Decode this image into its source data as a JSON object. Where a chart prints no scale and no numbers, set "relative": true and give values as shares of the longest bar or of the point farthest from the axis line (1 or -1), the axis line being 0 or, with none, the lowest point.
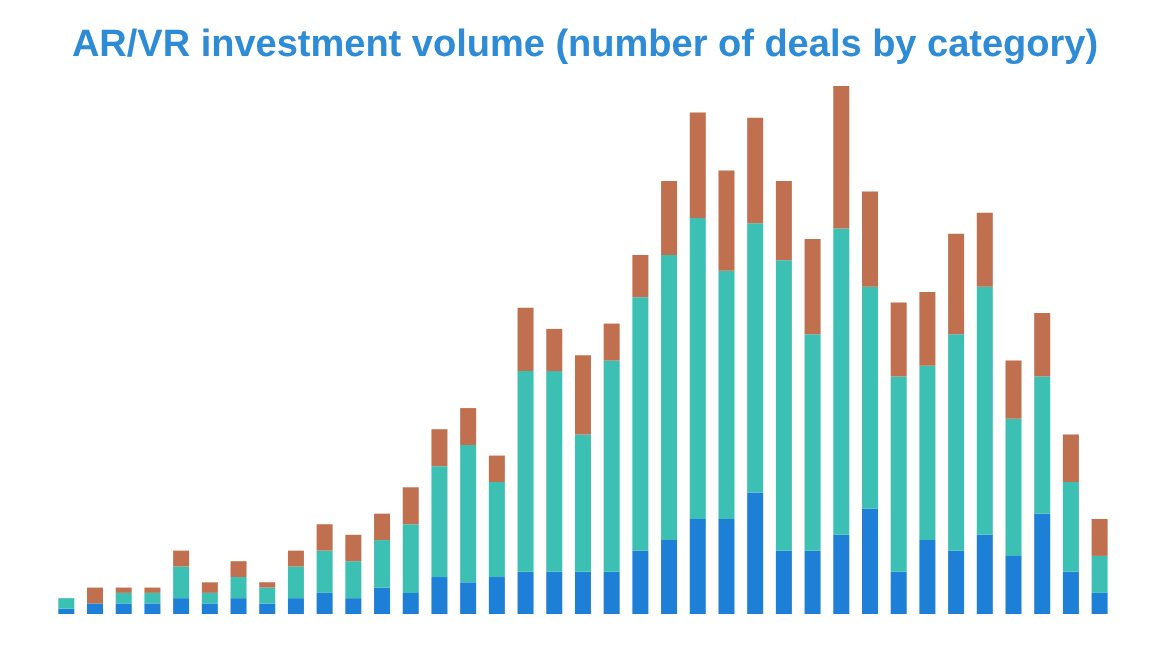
{
  "chart_data": {
    "type": "bar",
    "title": "AR/VR investment volume (number of deals by category)",
    "relative": true,
    "stacked": true,
    "legend": false,
    "grid": false,
    "categories": [
      null,
      null,
      null,
      null,
      null,
      null,
      null,
      null,
      null,
      null,
      null,
      null,
      null,
      null,
      null,
      null,
      null,
      null,
      null,
      null,
      null,
      null,
      null,
      null,
      null,
      null,
      null,
      null,
      null,
      null,
      null,
      null,
      null,
      null,
      null,
      null,
      null
    ],
    "series": [
      {
        "color": "#1e7fd6",
        "values": [
          0.01,
          0.02,
          0.02,
          0.02,
          0.03,
          0.02,
          0.03,
          0.02,
          0.03,
          0.04,
          0.03,
          0.05,
          0.04,
          0.07,
          0.06,
          0.07,
          0.08,
          0.08,
          0.08,
          0.08,
          0.12,
          0.14,
          0.18,
          0.18,
          0.23,
          0.12,
          0.12,
          0.15,
          0.2,
          0.08,
          0.14,
          0.12,
          0.15,
          0.11,
          0.19,
          0.08,
          0.04
        ]
      },
      {
        "color": "#3cc0b4",
        "values": [
          0.02,
          0.0,
          0.02,
          0.02,
          0.06,
          0.02,
          0.04,
          0.03,
          0.06,
          0.08,
          0.07,
          0.09,
          0.13,
          0.21,
          0.26,
          0.18,
          0.38,
          0.38,
          0.26,
          0.4,
          0.48,
          0.54,
          0.57,
          0.47,
          0.51,
          0.55,
          0.41,
          0.58,
          0.42,
          0.37,
          0.33,
          0.41,
          0.47,
          0.26,
          0.26,
          0.17,
          0.07
        ]
      },
      {
        "color": "#c0704f",
        "values": [
          0.0,
          0.03,
          0.01,
          0.01,
          0.03,
          0.02,
          0.03,
          0.01,
          0.03,
          0.05,
          0.05,
          0.05,
          0.07,
          0.07,
          0.07,
          0.05,
          0.12,
          0.08,
          0.15,
          0.07,
          0.08,
          0.14,
          0.2,
          0.19,
          0.2,
          0.15,
          0.18,
          0.27,
          0.18,
          0.14,
          0.14,
          0.19,
          0.14,
          0.11,
          0.12,
          0.09,
          0.07
        ]
      }
    ]
  }
}
